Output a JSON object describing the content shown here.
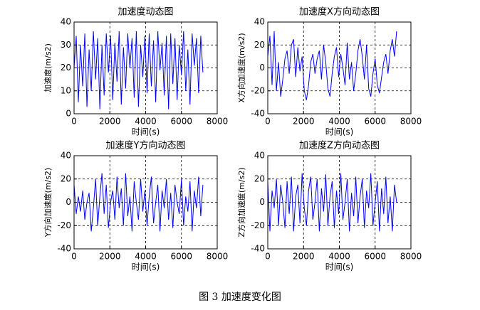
{
  "caption": "图 3 加速度变化图",
  "chart_data": [
    {
      "type": "line",
      "title": "加速度动态图",
      "xlabel": "时间(s)",
      "ylabel": "加速度(m/s2)",
      "color": "#0000ff",
      "grid": true,
      "xlim": [
        0,
        8000
      ],
      "xticks": [
        0,
        2000,
        4000,
        6000,
        8000
      ],
      "ylim": [
        0,
        40
      ],
      "yticks": [
        0,
        10,
        20,
        30,
        40
      ],
      "x": [
        0,
        120,
        240,
        360,
        480,
        600,
        720,
        840,
        960,
        1080,
        1200,
        1320,
        1440,
        1560,
        1680,
        1800,
        1920,
        2040,
        2160,
        2280,
        2400,
        2520,
        2640,
        2760,
        2880,
        3000,
        3120,
        3240,
        3360,
        3480,
        3600,
        3720,
        3840,
        3960,
        4080,
        4200,
        4320,
        4440,
        4560,
        4680,
        4800,
        4920,
        5040,
        5160,
        5280,
        5400,
        5520,
        5640,
        5760,
        5880,
        6000,
        6120,
        6240,
        6360,
        6480,
        6600,
        6720,
        6840,
        6960,
        7080,
        7200
      ],
      "values": [
        20,
        34,
        5,
        30,
        12,
        35,
        3,
        28,
        10,
        36,
        15,
        33,
        2,
        30,
        8,
        35,
        18,
        34,
        6,
        31,
        14,
        36,
        4,
        29,
        11,
        35,
        20,
        33,
        7,
        36,
        3,
        30,
        16,
        34,
        9,
        35,
        12,
        32,
        5,
        36,
        19,
        31,
        8,
        34,
        2,
        35,
        13,
        33,
        6,
        30,
        17,
        36,
        10,
        28,
        4,
        35,
        21,
        33,
        9,
        34,
        18
      ]
    },
    {
      "type": "line",
      "title": "加速度X方向动态图",
      "xlabel": "时间(s)",
      "ylabel": "X方向加速度(m/s2)",
      "color": "#0000ff",
      "grid": true,
      "xlim": [
        0,
        8000
      ],
      "xticks": [
        0,
        2000,
        4000,
        6000,
        8000
      ],
      "ylim": [
        -40,
        40
      ],
      "yticks": [
        -40,
        -20,
        0,
        20,
        40
      ],
      "x": [
        0,
        120,
        240,
        360,
        480,
        600,
        720,
        840,
        960,
        1080,
        1200,
        1320,
        1440,
        1560,
        1680,
        1800,
        1920,
        2040,
        2160,
        2280,
        2400,
        2520,
        2640,
        2760,
        2880,
        3000,
        3120,
        3240,
        3360,
        3480,
        3600,
        3720,
        3840,
        3960,
        4080,
        4200,
        4320,
        4440,
        4560,
        4680,
        4800,
        4920,
        5040,
        5160,
        5280,
        5400,
        5520,
        5640,
        5760,
        5880,
        6000,
        6120,
        6240,
        6360,
        6480,
        6600,
        6720,
        6840,
        6960,
        7080,
        7200
      ],
      "values": [
        10,
        28,
        -15,
        32,
        -20,
        5,
        -25,
        -10,
        8,
        15,
        -5,
        20,
        25,
        -8,
        18,
        -3,
        10,
        -20,
        -28,
        -15,
        5,
        12,
        -5,
        8,
        15,
        -10,
        20,
        5,
        -18,
        -25,
        -5,
        10,
        18,
        -8,
        12,
        0,
        -15,
        22,
        -10,
        5,
        -20,
        -5,
        15,
        25,
        10,
        -10,
        20,
        -18,
        -25,
        -5,
        8,
        -15,
        -22,
        -8,
        5,
        12,
        -5,
        15,
        25,
        10,
        32
      ]
    },
    {
      "type": "line",
      "title": "加速度Y方向动态图",
      "xlabel": "时间(s)",
      "ylabel": "Y方向加速度(m/s2)",
      "color": "#0000ff",
      "grid": true,
      "xlim": [
        0,
        8000
      ],
      "xticks": [
        0,
        2000,
        4000,
        6000,
        8000
      ],
      "ylim": [
        -40,
        40
      ],
      "yticks": [
        -40,
        -20,
        0,
        20,
        40
      ],
      "x": [
        0,
        120,
        240,
        360,
        480,
        600,
        720,
        840,
        960,
        1080,
        1200,
        1320,
        1440,
        1560,
        1680,
        1800,
        1920,
        2040,
        2160,
        2280,
        2400,
        2520,
        2640,
        2760,
        2880,
        3000,
        3120,
        3240,
        3360,
        3480,
        3600,
        3720,
        3840,
        3960,
        4080,
        4200,
        4320,
        4440,
        4560,
        4680,
        4800,
        4920,
        5040,
        5160,
        5280,
        5400,
        5520,
        5640,
        5760,
        5880,
        6000,
        6120,
        6240,
        6360,
        6480,
        6600,
        6720,
        6840,
        6960,
        7080,
        7200
      ],
      "values": [
        15,
        -10,
        5,
        -8,
        10,
        -15,
        0,
        8,
        -25,
        -5,
        20,
        -20,
        5,
        25,
        -10,
        15,
        -22,
        0,
        10,
        -15,
        22,
        -5,
        12,
        -20,
        25,
        -12,
        5,
        -25,
        18,
        0,
        -15,
        20,
        -8,
        10,
        -20,
        5,
        22,
        -18,
        0,
        15,
        -25,
        10,
        -5,
        20,
        -15,
        8,
        -22,
        15,
        0,
        -10,
        20,
        -20,
        5,
        -8,
        18,
        -25,
        10,
        -5,
        22,
        -12,
        15
      ]
    },
    {
      "type": "line",
      "title": "加速度Z方向动态图",
      "xlabel": "时间(s)",
      "ylabel": "Z方向加速度(m/s2)",
      "color": "#0000ff",
      "grid": true,
      "xlim": [
        0,
        8000
      ],
      "xticks": [
        0,
        2000,
        4000,
        6000,
        8000
      ],
      "ylim": [
        -40,
        40
      ],
      "yticks": [
        -40,
        -20,
        0,
        20,
        40
      ],
      "x": [
        0,
        120,
        240,
        360,
        480,
        600,
        720,
        840,
        960,
        1080,
        1200,
        1320,
        1440,
        1560,
        1680,
        1800,
        1920,
        2040,
        2160,
        2280,
        2400,
        2520,
        2640,
        2760,
        2880,
        3000,
        3120,
        3240,
        3360,
        3480,
        3600,
        3720,
        3840,
        3960,
        4080,
        4200,
        4320,
        4440,
        4560,
        4680,
        4800,
        4920,
        5040,
        5160,
        5280,
        5400,
        5520,
        5640,
        5760,
        5880,
        6000,
        6120,
        6240,
        6360,
        6480,
        6600,
        6720,
        6840,
        6960,
        7080,
        7200
      ],
      "values": [
        18,
        -25,
        10,
        -5,
        20,
        -20,
        15,
        0,
        -22,
        18,
        -10,
        22,
        -25,
        5,
        15,
        -18,
        25,
        -5,
        -20,
        10,
        22,
        -15,
        0,
        20,
        -25,
        12,
        -8,
        24,
        -20,
        5,
        18,
        -22,
        10,
        -10,
        25,
        -15,
        0,
        20,
        -25,
        8,
        -12,
        22,
        -18,
        5,
        20,
        -22,
        10,
        -5,
        25,
        -20,
        0,
        18,
        -25,
        12,
        -10,
        22,
        -18,
        5,
        -25,
        15,
        0
      ]
    }
  ]
}
